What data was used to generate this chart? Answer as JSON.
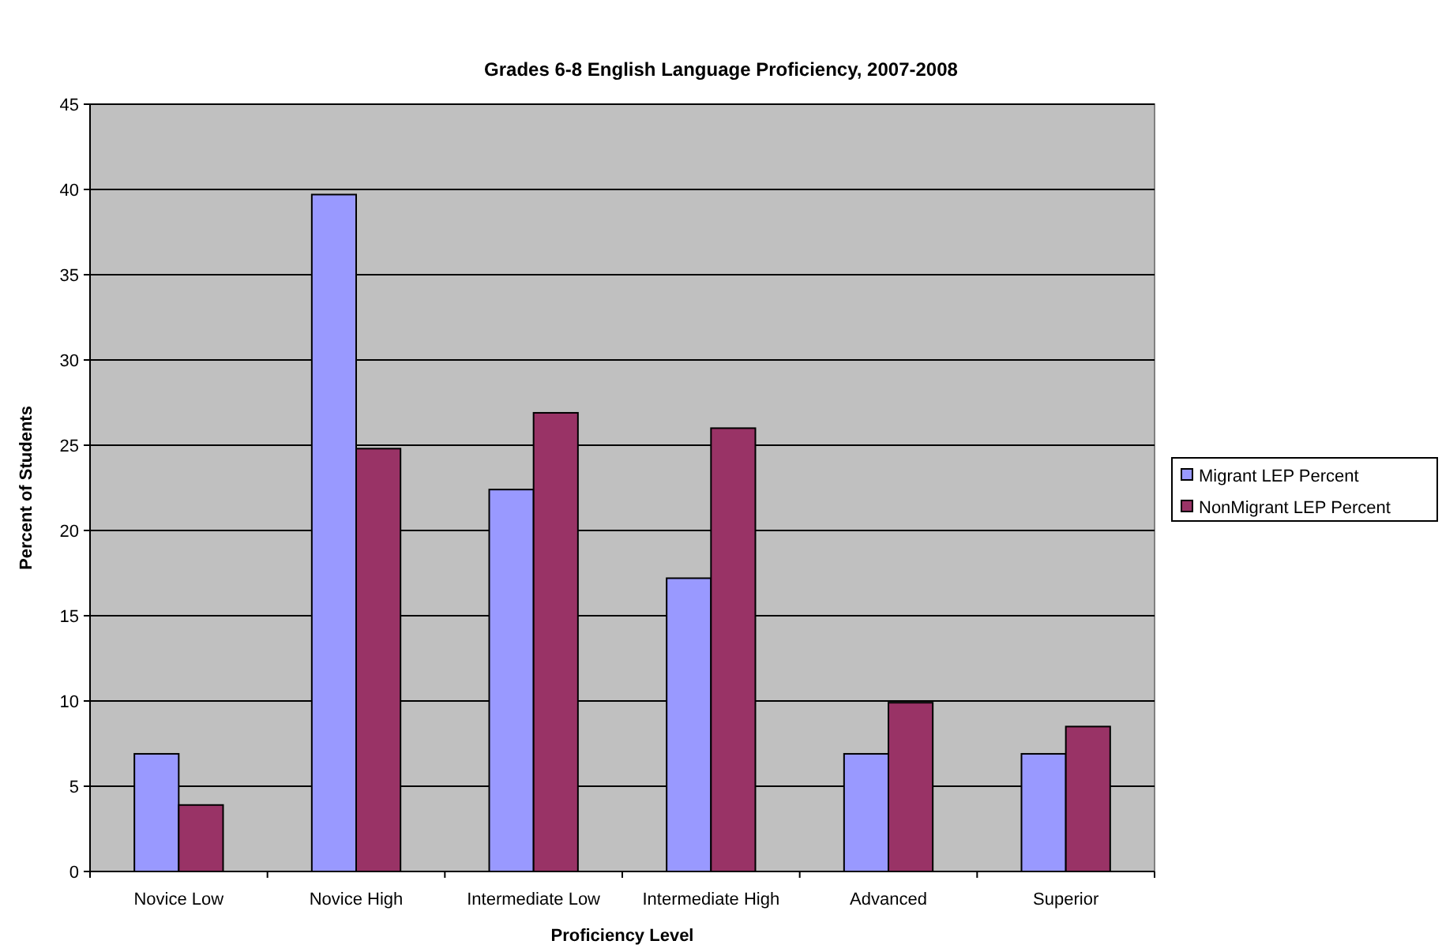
{
  "chart_data": {
    "type": "bar",
    "title": "Grades 6-8 English Language Proficiency, 2007-2008",
    "xlabel": "Proficiency Level",
    "ylabel": "Percent of Students",
    "categories": [
      "Novice Low",
      "Novice High",
      "Intermediate Low",
      "Intermediate High",
      "Advanced",
      "Superior"
    ],
    "series": [
      {
        "name": "Migrant LEP Percent",
        "color": "#9999ff",
        "values": [
          6.9,
          39.7,
          22.4,
          17.2,
          6.9,
          6.9
        ]
      },
      {
        "name": "NonMigrant LEP Percent",
        "color": "#993366",
        "values": [
          3.9,
          24.8,
          26.9,
          26.0,
          9.9,
          8.5
        ]
      }
    ],
    "ylim": [
      0,
      45
    ],
    "yticks": [
      0,
      5,
      10,
      15,
      20,
      25,
      30,
      35,
      40,
      45
    ],
    "grid": "y",
    "legend": "right"
  }
}
